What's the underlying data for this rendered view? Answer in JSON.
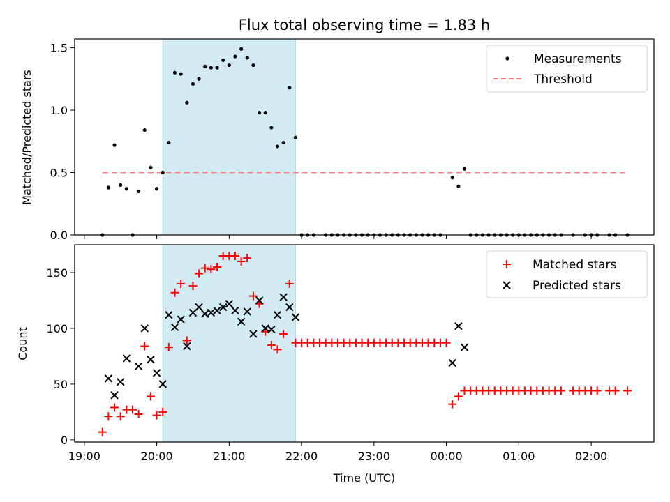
{
  "title": "Flux total observing time = 1.83 h",
  "colors": {
    "span": "#add8e6",
    "threshold": "#ff7f7f",
    "matched": "#ff0000",
    "predicted": "#000000",
    "measurements": "#000000"
  },
  "chart_data": [
    {
      "type": "scatter",
      "ylabel": "Matched/Predicted stars",
      "ylim": [
        0,
        1.57
      ],
      "yticks": [
        0,
        0.5,
        1.0,
        1.5
      ],
      "ytick_labels": [
        "0.0",
        "0.5",
        "1.0",
        "1.5"
      ],
      "shaded_span": [
        "20:05",
        "21:55"
      ],
      "legend": {
        "placement": "top-right",
        "entries": [
          "Measurements",
          "Threshold"
        ]
      },
      "threshold": {
        "name": "Threshold",
        "y": 0.5,
        "x_range": [
          "19:15",
          "02:30"
        ]
      },
      "series": [
        {
          "name": "Measurements",
          "points": [
            [
              "19:15",
              0
            ],
            [
              "19:20",
              0.38
            ],
            [
              "19:25",
              0.72
            ],
            [
              "19:30",
              0.4
            ],
            [
              "19:35",
              0.37
            ],
            [
              "19:40",
              0
            ],
            [
              "19:45",
              0.35
            ],
            [
              "19:50",
              0.84
            ],
            [
              "19:55",
              0.54
            ],
            [
              "20:00",
              0.37
            ],
            [
              "20:05",
              0.5
            ],
            [
              "20:10",
              0.74
            ],
            [
              "20:15",
              1.3
            ],
            [
              "20:20",
              1.29
            ],
            [
              "20:25",
              1.06
            ],
            [
              "20:30",
              1.21
            ],
            [
              "20:35",
              1.25
            ],
            [
              "20:40",
              1.35
            ],
            [
              "20:45",
              1.34
            ],
            [
              "20:50",
              1.34
            ],
            [
              "20:55",
              1.4
            ],
            [
              "21:00",
              1.36
            ],
            [
              "21:05",
              1.43
            ],
            [
              "21:10",
              1.49
            ],
            [
              "21:15",
              1.42
            ],
            [
              "21:20",
              1.36
            ],
            [
              "21:25",
              0.98
            ],
            [
              "21:30",
              0.98
            ],
            [
              "21:35",
              0.86
            ],
            [
              "21:40",
              0.71
            ],
            [
              "21:45",
              0.74
            ],
            [
              "21:50",
              1.18
            ],
            [
              "21:55",
              0.78
            ],
            [
              "22:00",
              0
            ],
            [
              "22:05",
              0
            ],
            [
              "22:10",
              0
            ],
            [
              "22:20",
              0
            ],
            [
              "22:25",
              0
            ],
            [
              "22:30",
              0
            ],
            [
              "22:35",
              0
            ],
            [
              "22:40",
              0
            ],
            [
              "22:45",
              0
            ],
            [
              "22:50",
              0
            ],
            [
              "22:55",
              0
            ],
            [
              "23:00",
              0
            ],
            [
              "23:05",
              0
            ],
            [
              "23:10",
              0
            ],
            [
              "23:15",
              0
            ],
            [
              "23:20",
              0
            ],
            [
              "23:25",
              0
            ],
            [
              "23:30",
              0
            ],
            [
              "23:35",
              0
            ],
            [
              "23:40",
              0
            ],
            [
              "23:45",
              0
            ],
            [
              "23:50",
              0
            ],
            [
              "23:55",
              0
            ],
            [
              "00:05",
              0.46
            ],
            [
              "00:10",
              0.39
            ],
            [
              "00:15",
              0.53
            ],
            [
              "00:20",
              0
            ],
            [
              "00:25",
              0
            ],
            [
              "00:30",
              0
            ],
            [
              "00:35",
              0
            ],
            [
              "00:40",
              0
            ],
            [
              "00:45",
              0
            ],
            [
              "00:50",
              0
            ],
            [
              "00:55",
              0
            ],
            [
              "01:00",
              0
            ],
            [
              "01:05",
              0
            ],
            [
              "01:10",
              0
            ],
            [
              "01:15",
              0
            ],
            [
              "01:20",
              0
            ],
            [
              "01:25",
              0
            ],
            [
              "01:30",
              0
            ],
            [
              "01:35",
              0
            ],
            [
              "01:45",
              0
            ],
            [
              "01:55",
              0
            ],
            [
              "02:00",
              0
            ],
            [
              "02:05",
              0
            ],
            [
              "02:15",
              0
            ],
            [
              "02:20",
              0
            ],
            [
              "02:30",
              0
            ]
          ]
        }
      ]
    },
    {
      "type": "scatter",
      "xlabel": "Time (UTC)",
      "ylabel": "Count",
      "ylim": [
        -2,
        175
      ],
      "yticks": [
        0,
        50,
        100,
        150
      ],
      "ytick_labels": [
        "0",
        "50",
        "100",
        "150"
      ],
      "xlim": [
        "18:52",
        "02:52"
      ],
      "xticks": [
        "19:00",
        "20:00",
        "21:00",
        "22:00",
        "23:00",
        "00:00",
        "01:00",
        "02:00"
      ],
      "xtick_labels": [
        "19:00",
        "20:00",
        "21:00",
        "22:00",
        "23:00",
        "00:00",
        "01:00",
        "02:00"
      ],
      "shaded_span": [
        "20:05",
        "21:55"
      ],
      "legend": {
        "placement": "top-right",
        "entries": [
          "Matched stars",
          "Predicted stars"
        ]
      },
      "series": [
        {
          "name": "Matched stars",
          "points": [
            [
              "19:15",
              7
            ],
            [
              "19:20",
              21
            ],
            [
              "19:25",
              29
            ],
            [
              "19:30",
              21
            ],
            [
              "19:35",
              27
            ],
            [
              "19:40",
              27
            ],
            [
              "19:45",
              23
            ],
            [
              "19:50",
              84
            ],
            [
              "19:55",
              39
            ],
            [
              "20:00",
              22
            ],
            [
              "20:05",
              25
            ],
            [
              "20:10",
              83
            ],
            [
              "20:15",
              132
            ],
            [
              "20:20",
              140
            ],
            [
              "20:25",
              89
            ],
            [
              "20:30",
              138
            ],
            [
              "20:35",
              149
            ],
            [
              "20:40",
              154
            ],
            [
              "20:45",
              153
            ],
            [
              "20:50",
              155
            ],
            [
              "20:55",
              165
            ],
            [
              "21:00",
              165
            ],
            [
              "21:05",
              165
            ],
            [
              "21:10",
              160
            ],
            [
              "21:15",
              163
            ],
            [
              "21:20",
              129
            ],
            [
              "21:25",
              122
            ],
            [
              "21:30",
              97
            ],
            [
              "21:35",
              85
            ],
            [
              "21:40",
              81
            ],
            [
              "21:45",
              95
            ],
            [
              "21:50",
              140
            ],
            [
              "21:55",
              87
            ],
            [
              "22:00",
              87
            ],
            [
              "22:05",
              87
            ],
            [
              "22:10",
              87
            ],
            [
              "22:15",
              87
            ],
            [
              "22:20",
              87
            ],
            [
              "22:25",
              87
            ],
            [
              "22:30",
              87
            ],
            [
              "22:35",
              87
            ],
            [
              "22:40",
              87
            ],
            [
              "22:45",
              87
            ],
            [
              "22:50",
              87
            ],
            [
              "22:55",
              87
            ],
            [
              "23:00",
              87
            ],
            [
              "23:05",
              87
            ],
            [
              "23:10",
              87
            ],
            [
              "23:15",
              87
            ],
            [
              "23:20",
              87
            ],
            [
              "23:25",
              87
            ],
            [
              "23:30",
              87
            ],
            [
              "23:35",
              87
            ],
            [
              "23:40",
              87
            ],
            [
              "23:45",
              87
            ],
            [
              "23:50",
              87
            ],
            [
              "23:55",
              87
            ],
            [
              "00:00",
              87
            ],
            [
              "00:05",
              32
            ],
            [
              "00:10",
              39
            ],
            [
              "00:15",
              44
            ],
            [
              "00:20",
              44
            ],
            [
              "00:25",
              44
            ],
            [
              "00:30",
              44
            ],
            [
              "00:35",
              44
            ],
            [
              "00:40",
              44
            ],
            [
              "00:45",
              44
            ],
            [
              "00:50",
              44
            ],
            [
              "00:55",
              44
            ],
            [
              "01:00",
              44
            ],
            [
              "01:05",
              44
            ],
            [
              "01:10",
              44
            ],
            [
              "01:15",
              44
            ],
            [
              "01:20",
              44
            ],
            [
              "01:25",
              44
            ],
            [
              "01:30",
              44
            ],
            [
              "01:35",
              44
            ],
            [
              "01:45",
              44
            ],
            [
              "01:50",
              44
            ],
            [
              "01:55",
              44
            ],
            [
              "02:00",
              44
            ],
            [
              "02:05",
              44
            ],
            [
              "02:15",
              44
            ],
            [
              "02:20",
              44
            ],
            [
              "02:30",
              44
            ]
          ]
        },
        {
          "name": "Predicted stars",
          "points": [
            [
              "19:20",
              55
            ],
            [
              "19:25",
              40
            ],
            [
              "19:30",
              52
            ],
            [
              "19:35",
              73
            ],
            [
              "19:45",
              66
            ],
            [
              "19:50",
              100
            ],
            [
              "19:55",
              72
            ],
            [
              "20:00",
              60
            ],
            [
              "20:05",
              50
            ],
            [
              "20:10",
              112
            ],
            [
              "20:15",
              101
            ],
            [
              "20:20",
              108
            ],
            [
              "20:25",
              84
            ],
            [
              "20:30",
              114
            ],
            [
              "20:35",
              119
            ],
            [
              "20:40",
              113
            ],
            [
              "20:45",
              114
            ],
            [
              "20:50",
              116
            ],
            [
              "20:55",
              119
            ],
            [
              "21:00",
              122
            ],
            [
              "21:05",
              116
            ],
            [
              "21:10",
              106
            ],
            [
              "21:15",
              115
            ],
            [
              "21:20",
              95
            ],
            [
              "21:25",
              125
            ],
            [
              "21:30",
              100
            ],
            [
              "21:35",
              99
            ],
            [
              "21:40",
              112
            ],
            [
              "21:45",
              128
            ],
            [
              "21:50",
              119
            ],
            [
              "21:55",
              110
            ],
            [
              "00:05",
              69
            ],
            [
              "00:10",
              102
            ],
            [
              "00:15",
              83
            ]
          ]
        }
      ]
    }
  ]
}
